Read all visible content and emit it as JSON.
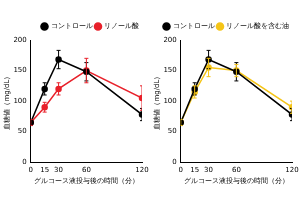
{
  "chart_data": [
    {
      "type": "line",
      "xlabel": "グルコース液投与後の時間（分）",
      "ylabel": "血糖値（mg/dL）",
      "x": [
        0,
        15,
        30,
        60,
        120
      ],
      "xlim": [
        0,
        120
      ],
      "xticks": [
        0,
        15,
        30,
        60,
        120
      ],
      "ylim": [
        0,
        200
      ],
      "yticks": [
        0,
        50,
        100,
        150,
        200
      ],
      "legend": "upper right",
      "series": [
        {
          "name": "コントロール",
          "color": "#000000",
          "marker": "circle",
          "values": [
            65,
            120,
            168,
            148,
            78
          ],
          "errors": [
            5,
            10,
            15,
            15,
            10
          ]
        },
        {
          "name": "リノール酸",
          "color": "#e8202a",
          "marker": "circle",
          "values": [
            65,
            90,
            120,
            150,
            105
          ],
          "errors": [
            5,
            8,
            10,
            20,
            20
          ]
        }
      ]
    },
    {
      "type": "line",
      "xlabel": "グルコース液投与後の時間（分）",
      "ylabel": "血糖値（mg/dL）",
      "x": [
        0,
        15,
        30,
        60,
        120
      ],
      "xlim": [
        0,
        120
      ],
      "xticks": [
        0,
        15,
        30,
        60,
        120
      ],
      "ylim": [
        0,
        200
      ],
      "yticks": [
        0,
        50,
        100,
        150,
        200
      ],
      "legend": "upper right",
      "series": [
        {
          "name": "コントロール",
          "color": "#000000",
          "marker": "circle",
          "values": [
            65,
            120,
            168,
            148,
            78
          ],
          "errors": [
            5,
            10,
            15,
            15,
            10
          ]
        },
        {
          "name": "リノール酸を含む油",
          "color": "#f5c518",
          "marker": "circle",
          "values": [
            65,
            115,
            155,
            150,
            90
          ],
          "errors": [
            5,
            10,
            15,
            10,
            10
          ]
        }
      ]
    }
  ]
}
